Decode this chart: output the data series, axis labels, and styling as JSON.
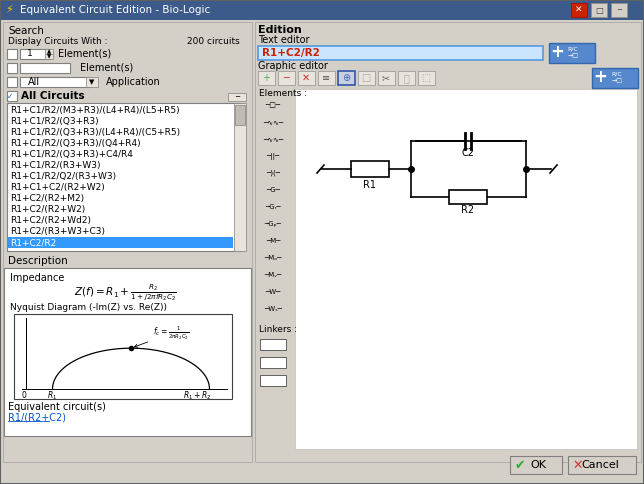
{
  "title": "Equivalent Circuit Edition - Bio-Logic",
  "bg_color": "#d4d0c8",
  "white": "#ffffff",
  "blue_sel": "#3399ff",
  "dark": "#000000",
  "light_gray": "#e8e4dc",
  "title_bar_color": "#3c5a8a",
  "search_label": "Search",
  "display_label": "Display Circuits With :",
  "circuits_count": "200 circuits",
  "element_label1": "Element(s)",
  "element_label2": "Element(s)",
  "all_label": "All",
  "application_label": "Application",
  "all_circuits_label": "All Circuits",
  "circuit_list": [
    "R1+C1/R2/(M3+R3)/(L4+R4)/(L5+R5)",
    "R1+C1/R2/(Q3+R3)",
    "R1+C1/R2/(Q3+R3)/(L4+R4)/(C5+R5)",
    "R1+C1/R2/(Q3+R3)/(Q4+R4)",
    "R1+C1/R2/(Q3+R3)+C4/R4",
    "R1+C1/R2/(R3+W3)",
    "R1+C1/R2/Q2/(R3+W3)",
    "R1+C1+C2/(R2+W2)",
    "R1+C2/(R2+M2)",
    "R1+C2/(R2+W2)",
    "R1+C2/(R2+Wd2)",
    "R1+C2/(R3+W3+C3)",
    "R1+C2/R2"
  ],
  "selected_circuit": "R1+C2/R2",
  "description_label": "Description",
  "impedance_label": "Impedance",
  "nyquist_label": "Nyquist Diagram (-Im(Z) vs. Re(Z))",
  "equiv_label": "Equivalent circuit(s)",
  "equiv_link": "R1/(R2+C2)",
  "edition_label": "Edition",
  "text_editor_label": "Text editor",
  "text_editor_value": "R1+C2/R2",
  "graphic_editor_label": "Graphic editor",
  "elements_label": "Elements :",
  "linkers_label": "Linkers :",
  "ok_label": "OK",
  "cancel_label": "Cancel"
}
